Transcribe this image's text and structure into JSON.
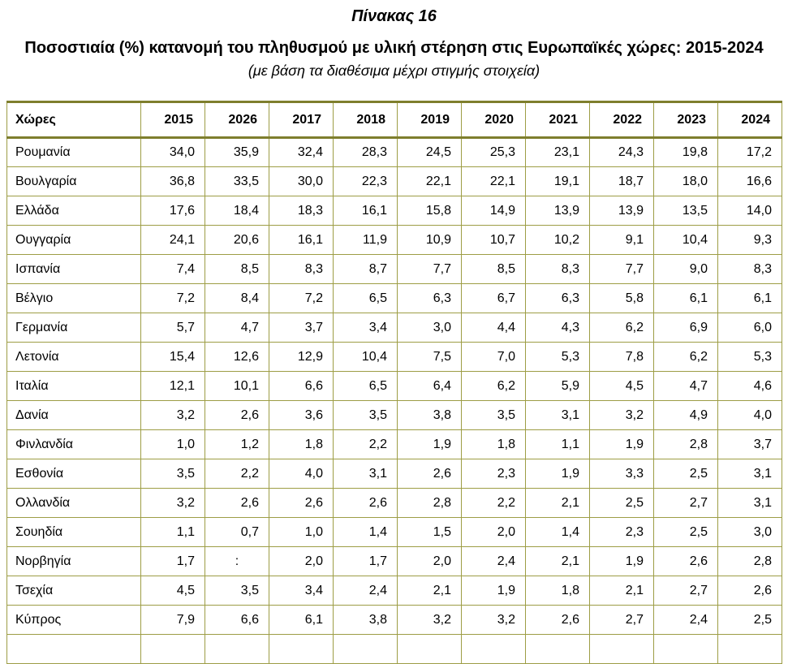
{
  "page": {
    "table_label": "Πίνακας 16",
    "title": "Ποσοστιαία (%) κατανομή του πληθυσμού με υλική στέρηση στις Ευρωπαϊκές χώρες: 2015-2024",
    "note": "(με βάση τα διαθέσιμα μέχρι στιγμής στοιχεία)"
  },
  "colors": {
    "border_thick": "#7e7e2d",
    "border_thin": "#9d9d45",
    "text": "#000000"
  },
  "table": {
    "country_header": "Χώρες",
    "year_columns": [
      "2015",
      "2026",
      "2017",
      "2018",
      "2019",
      "2020",
      "2021",
      "2022",
      "2023",
      "2024"
    ],
    "missing_value_symbol": ":",
    "rows": [
      {
        "country": "Ρουμανία",
        "values": [
          "34,0",
          "35,9",
          "32,4",
          "28,3",
          "24,5",
          "25,3",
          "23,1",
          "24,3",
          "19,8",
          "17,2"
        ]
      },
      {
        "country": "Βουλγαρία",
        "values": [
          "36,8",
          "33,5",
          "30,0",
          "22,3",
          "22,1",
          "22,1",
          "19,1",
          "18,7",
          "18,0",
          "16,6"
        ]
      },
      {
        "country": "Ελλάδα",
        "values": [
          "17,6",
          "18,4",
          "18,3",
          "16,1",
          "15,8",
          "14,9",
          "13,9",
          "13,9",
          "13,5",
          "14,0"
        ]
      },
      {
        "country": "Ουγγαρία",
        "values": [
          "24,1",
          "20,6",
          "16,1",
          "11,9",
          "10,9",
          "10,7",
          "10,2",
          "9,1",
          "10,4",
          "9,3"
        ]
      },
      {
        "country": "Ισπανία",
        "values": [
          "7,4",
          "8,5",
          "8,3",
          "8,7",
          "7,7",
          "8,5",
          "8,3",
          "7,7",
          "9,0",
          "8,3"
        ]
      },
      {
        "country": "Βέλγιο",
        "values": [
          "7,2",
          "8,4",
          "7,2",
          "6,5",
          "6,3",
          "6,7",
          "6,3",
          "5,8",
          "6,1",
          "6,1"
        ]
      },
      {
        "country": "Γερμανία",
        "values": [
          "5,7",
          "4,7",
          "3,7",
          "3,4",
          "3,0",
          "4,4",
          "4,3",
          "6,2",
          "6,9",
          "6,0"
        ]
      },
      {
        "country": "Λετονία",
        "values": [
          "15,4",
          "12,6",
          "12,9",
          "10,4",
          "7,5",
          "7,0",
          "5,3",
          "7,8",
          "6,2",
          "5,3"
        ]
      },
      {
        "country": "Ιταλία",
        "values": [
          "12,1",
          "10,1",
          "6,6",
          "6,5",
          "6,4",
          "6,2",
          "5,9",
          "4,5",
          "4,7",
          "4,6"
        ]
      },
      {
        "country": "Δανία",
        "values": [
          "3,2",
          "2,6",
          "3,6",
          "3,5",
          "3,8",
          "3,5",
          "3,1",
          "3,2",
          "4,9",
          "4,0"
        ]
      },
      {
        "country": "Φινλανδία",
        "values": [
          "1,0",
          "1,2",
          "1,8",
          "2,2",
          "1,9",
          "1,8",
          "1,1",
          "1,9",
          "2,8",
          "3,7"
        ]
      },
      {
        "country": "Εσθονία",
        "values": [
          "3,5",
          "2,2",
          "4,0",
          "3,1",
          "2,6",
          "2,3",
          "1,9",
          "3,3",
          "2,5",
          "3,1"
        ]
      },
      {
        "country": "Ολλανδία",
        "values": [
          "3,2",
          "2,6",
          "2,6",
          "2,6",
          "2,8",
          "2,2",
          "2,1",
          "2,5",
          "2,7",
          "3,1"
        ]
      },
      {
        "country": "Σουηδία",
        "values": [
          "1,1",
          "0,7",
          "1,0",
          "1,4",
          "1,5",
          "2,0",
          "1,4",
          "2,3",
          "2,5",
          "3,0"
        ]
      },
      {
        "country": "Νορβηγία",
        "values": [
          "1,7",
          ":",
          "2,0",
          "1,7",
          "2,0",
          "2,4",
          "2,1",
          "1,9",
          "2,6",
          "2,8"
        ]
      },
      {
        "country": "Τσεχία",
        "values": [
          "4,5",
          "3,5",
          "3,4",
          "2,4",
          "2,1",
          "1,9",
          "1,8",
          "2,1",
          "2,7",
          "2,6"
        ]
      },
      {
        "country": "Κύπρος",
        "values": [
          "7,9",
          "6,6",
          "6,1",
          "3,8",
          "3,2",
          "3,2",
          "2,6",
          "2,7",
          "2,4",
          "2,5"
        ]
      }
    ]
  }
}
